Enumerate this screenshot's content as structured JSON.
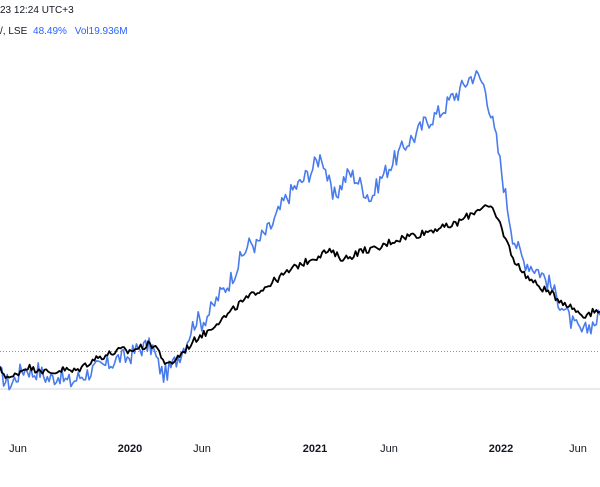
{
  "header": {
    "timestamp": "23 12:24 UTC+3",
    "symbol_suffix": "/, LSE",
    "change_pct": "48.49%",
    "volume_label": "Vol",
    "volume_value": "19.936M"
  },
  "colors": {
    "primary_series": "#4a7bec",
    "comparison_series": "#000000",
    "baseline": "#7b96f0"
  },
  "chart_data": {
    "type": "line",
    "x_labels": [
      {
        "text": "Jun",
        "major": false
      },
      {
        "text": "2020",
        "major": true
      },
      {
        "text": "Jun",
        "major": false
      },
      {
        "text": "2021",
        "major": true
      },
      {
        "text": "Jun",
        "major": false
      },
      {
        "text": "2022",
        "major": true
      },
      {
        "text": "Jun",
        "major": false
      }
    ],
    "baseline_value": 0,
    "ylim": [
      -20,
      160
    ],
    "series": [
      {
        "color": "#4a7bec",
        "values": [
          -12,
          -16,
          -18,
          -14,
          -10,
          -9,
          -12,
          -10,
          -13,
          -15,
          -14,
          -13,
          -16,
          -17,
          -15,
          -13,
          -12,
          -10,
          -9,
          -8,
          -7,
          -5,
          -3,
          -4,
          -2,
          1,
          2,
          3,
          2,
          -7,
          -13,
          -10,
          -6,
          -1,
          4,
          12,
          18,
          16,
          20,
          24,
          30,
          34,
          38,
          44,
          50,
          56,
          60,
          58,
          63,
          66,
          70,
          76,
          82,
          86,
          90,
          92,
          96,
          99,
          104,
          108,
          96,
          84,
          88,
          94,
          98,
          96,
          92,
          88,
          84,
          90,
          96,
          100,
          104,
          108,
          112,
          116,
          118,
          122,
          126,
          128,
          130,
          132,
          136,
          140,
          142,
          146,
          150,
          152,
          150,
          144,
          130,
          116,
          98,
          80,
          64,
          56,
          50,
          48,
          46,
          44,
          40,
          36,
          30,
          26,
          20,
          15,
          12,
          10,
          14,
          16,
          20
        ],
        "noise": 5
      },
      {
        "color": "#000000",
        "values": [
          -10,
          -13,
          -15,
          -12,
          -10,
          -8,
          -10,
          -9,
          -11,
          -12,
          -11,
          -10,
          -10,
          -11,
          -10,
          -8,
          -6,
          -4,
          -3,
          -2,
          -1,
          0,
          1,
          0,
          1,
          2,
          3,
          4,
          3,
          -2,
          -8,
          -6,
          -3,
          0,
          3,
          6,
          9,
          10,
          13,
          16,
          18,
          20,
          23,
          26,
          28,
          30,
          33,
          34,
          36,
          38,
          40,
          42,
          44,
          46,
          48,
          49,
          51,
          52,
          54,
          55,
          54,
          52,
          51,
          52,
          54,
          55,
          56,
          56,
          56,
          58,
          60,
          61,
          62,
          63,
          64,
          64,
          65,
          66,
          67,
          68,
          68,
          69,
          70,
          72,
          74,
          76,
          78,
          80,
          79,
          76,
          70,
          62,
          54,
          48,
          44,
          41,
          38,
          36,
          34,
          32,
          30,
          28,
          26,
          24,
          22,
          20,
          21,
          22,
          22
        ],
        "noise": 2
      }
    ]
  }
}
